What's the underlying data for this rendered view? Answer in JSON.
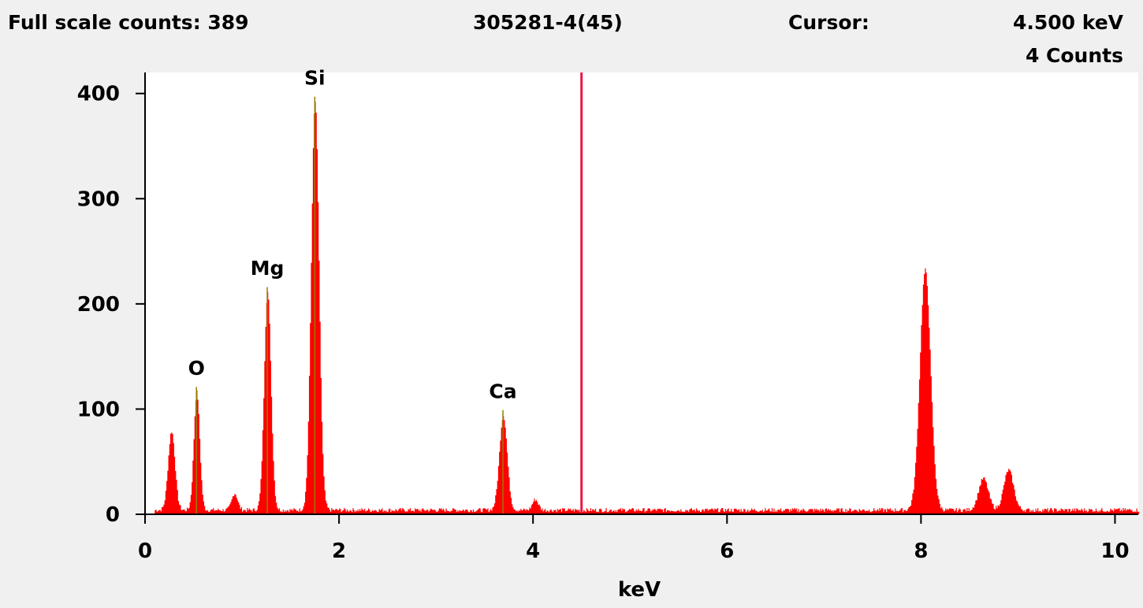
{
  "header": {
    "full_scale": "Full scale counts: 389",
    "sample": "305281-4(45)",
    "cursor_label": "Cursor:",
    "cursor_value": "4.500 keV",
    "cursor_counts": "4 Counts"
  },
  "colors": {
    "spectrum": "#ff0000",
    "cursor": "#e8174a",
    "peak_marker": "#9a7a00",
    "plot_bg": "#ffffff",
    "page_bg": "#f0f0f0"
  },
  "chart_data": {
    "type": "area",
    "title": "305281-4(45)",
    "xlabel": "keV",
    "ylabel": "",
    "xlim": [
      0,
      10.24
    ],
    "ylim": [
      0,
      420
    ],
    "x_ticks": [
      0,
      2,
      4,
      6,
      8,
      10
    ],
    "y_ticks": [
      0,
      100,
      200,
      300,
      400
    ],
    "grid": false,
    "cursor_kev": 4.5,
    "baseline_counts": 4,
    "peaks": [
      {
        "center": 0.27,
        "height": 75,
        "width": 0.035
      },
      {
        "center": 0.53,
        "height": 112,
        "width": 0.03,
        "label": "O"
      },
      {
        "center": 0.92,
        "height": 16,
        "width": 0.03
      },
      {
        "center": 1.26,
        "height": 207,
        "width": 0.035,
        "label": "Mg"
      },
      {
        "center": 1.75,
        "height": 388,
        "width": 0.04,
        "label": "Si"
      },
      {
        "center": 3.69,
        "height": 90,
        "width": 0.04,
        "label": "Ca"
      },
      {
        "center": 4.02,
        "height": 10,
        "width": 0.03
      },
      {
        "center": 8.04,
        "height": 228,
        "width": 0.055
      },
      {
        "center": 8.64,
        "height": 30,
        "width": 0.05
      },
      {
        "center": 8.9,
        "height": 38,
        "width": 0.05
      }
    ],
    "peak_labels": [
      {
        "label": "O",
        "x": 0.53
      },
      {
        "label": "Mg",
        "x": 1.26
      },
      {
        "label": "Si",
        "x": 1.75
      },
      {
        "label": "Ca",
        "x": 3.69
      }
    ]
  }
}
